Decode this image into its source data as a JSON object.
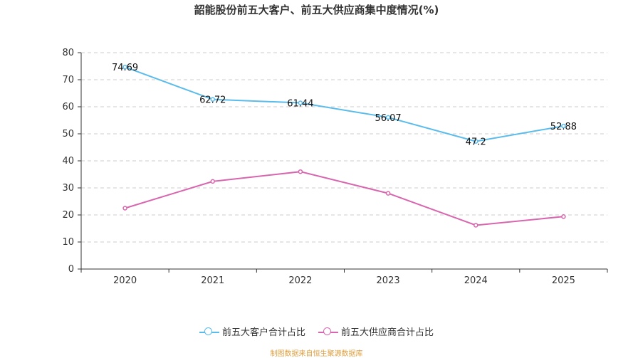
{
  "title": "韶能股份前五大客户、前五大供应商集中度情况(%)",
  "source": "制图数据来自恒生聚源数据库",
  "colors": {
    "customers": "#5bbcec",
    "suppliers": "#d866ae",
    "grid": "#cccccc",
    "axis": "#333333"
  },
  "chart_data": {
    "type": "line",
    "title": "韶能股份前五大客户、前五大供应商集中度情况(%)",
    "categories": [
      "2020",
      "2021",
      "2022",
      "2023",
      "2024",
      "2025"
    ],
    "ylim": [
      0,
      80
    ],
    "yticks": [
      0,
      10,
      20,
      30,
      40,
      50,
      60,
      70,
      80
    ],
    "grid": "horizontal dashed",
    "legend_position": "bottom",
    "series": [
      {
        "name": "前五大客户合计占比",
        "values": [
          74.69,
          62.72,
          61.44,
          56.07,
          47.2,
          52.88
        ],
        "labels": [
          "74.69",
          "62.72",
          "61.44",
          "56.07",
          "47.2",
          "52.88"
        ],
        "show_labels": true
      },
      {
        "name": "前五大供应商合计占比",
        "values": [
          22.5,
          32.4,
          36.0,
          28.0,
          16.2,
          19.4
        ],
        "show_labels": false
      }
    ]
  }
}
